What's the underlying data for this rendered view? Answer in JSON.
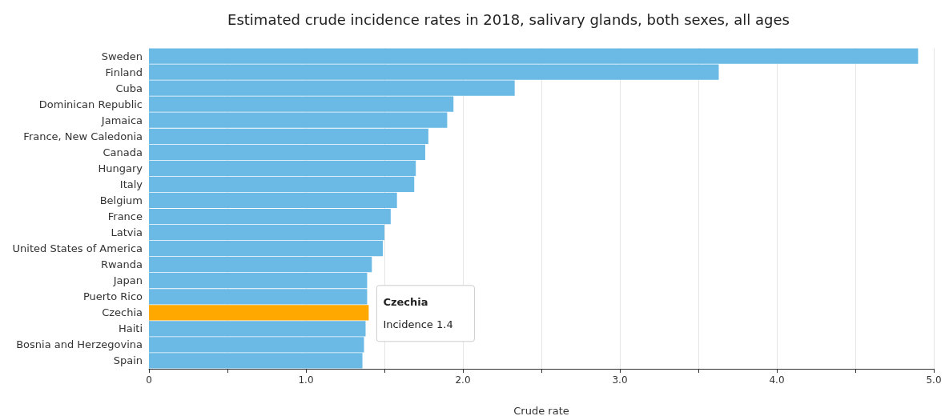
{
  "chart_data": {
    "type": "bar",
    "orientation": "horizontal",
    "title": "Estimated crude incidence rates in 2018, salivary glands, both sexes, all ages",
    "xlabel": "Crude rate",
    "categories": [
      "Sweden",
      "Finland",
      "Cuba",
      "Dominican Republic",
      "Jamaica",
      "France, New Caledonia",
      "Canada",
      "Hungary",
      "Italy",
      "Belgium",
      "France",
      "Latvia",
      "United States of America",
      "Rwanda",
      "Japan",
      "Puerto Rico",
      "Czechia",
      "Haiti",
      "Bosnia and Herzegovina",
      "Spain"
    ],
    "values": [
      4.9,
      3.63,
      2.33,
      1.94,
      1.9,
      1.78,
      1.76,
      1.7,
      1.69,
      1.58,
      1.54,
      1.5,
      1.49,
      1.42,
      1.39,
      1.39,
      1.4,
      1.38,
      1.37,
      1.36
    ],
    "colors": [
      "#6bb9e5",
      "#6bb9e5",
      "#6bb9e5",
      "#6bb9e5",
      "#6bb9e5",
      "#6bb9e5",
      "#6bb9e5",
      "#6bb9e5",
      "#6bb9e5",
      "#6bb9e5",
      "#6bb9e5",
      "#6bb9e5",
      "#6bb9e5",
      "#6bb9e5",
      "#6bb9e5",
      "#6bb9e5",
      "#ffa800",
      "#6bb9e5",
      "#6bb9e5",
      "#6bb9e5"
    ],
    "xlim": [
      0,
      5
    ],
    "xticks": [
      0,
      {
        "value": 0.5,
        "label": null
      },
      {
        "value": 1,
        "label": "1.0"
      },
      {
        "value": 1.5,
        "label": null
      },
      {
        "value": 2,
        "label": "2.0"
      },
      {
        "value": 2.5,
        "label": null
      },
      {
        "value": 3,
        "label": "3.0"
      },
      {
        "value": 3.5,
        "label": null
      },
      {
        "value": 4,
        "label": "4.0"
      },
      {
        "value": 4.5,
        "label": null
      },
      {
        "value": 5,
        "label": "5.0"
      }
    ],
    "grid": "x",
    "annotations": [
      {
        "text": "Czechia\nIncidence 1.4",
        "x": 1.4,
        "y": "Czechia"
      }
    ]
  }
}
